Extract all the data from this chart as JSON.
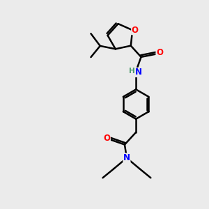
{
  "bg_color": "#ebebeb",
  "bond_color": "#000000",
  "bond_width": 1.8,
  "atom_colors": {
    "O": "#ff0000",
    "N": "#0000ff",
    "H": "#4a9a6a"
  },
  "font_size": 8.5,
  "figsize": [
    3.0,
    3.0
  ],
  "dpi": 100,
  "xlim": [
    0,
    10
  ],
  "ylim": [
    0,
    10
  ]
}
